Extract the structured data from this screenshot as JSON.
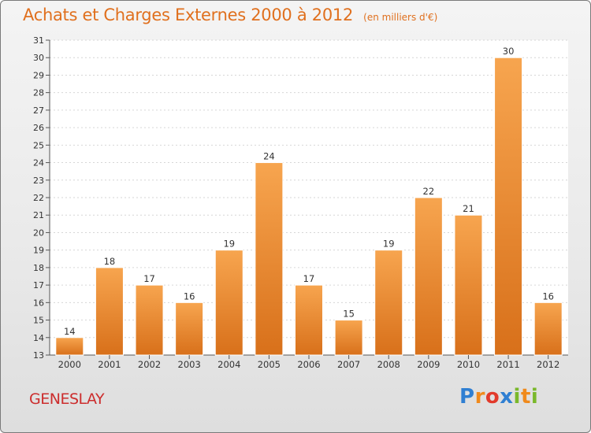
{
  "title": "Achats et Charges Externes 2000 à 2012",
  "unit": "(en milliers d'€)",
  "place": "GENESLAY",
  "logo": {
    "letters": [
      {
        "ch": "P",
        "color": "#2f7fd2"
      },
      {
        "ch": "r",
        "color": "#f08a1c"
      },
      {
        "ch": "o",
        "color": "#e23a2b"
      },
      {
        "ch": "x",
        "color": "#2f7fd2"
      },
      {
        "ch": "i",
        "color": "#7ab82b"
      },
      {
        "ch": "t",
        "color": "#f08a1c"
      },
      {
        "ch": "i",
        "color": "#7ab82b"
      }
    ]
  },
  "colors": {
    "bar_top": "#f7a54f",
    "bar_bottom": "#d8701a",
    "title": "#e0701e",
    "place": "#cc2d2d"
  },
  "chart_data": {
    "type": "bar",
    "categories": [
      "2000",
      "2001",
      "2002",
      "2003",
      "2004",
      "2005",
      "2006",
      "2007",
      "2008",
      "2009",
      "2010",
      "2011",
      "2012"
    ],
    "values": [
      14,
      18,
      17,
      16,
      19,
      24,
      17,
      15,
      19,
      22,
      21,
      30,
      16
    ],
    "ylim": [
      13,
      31
    ],
    "yticks": [
      13,
      14,
      15,
      16,
      17,
      18,
      19,
      20,
      21,
      22,
      23,
      24,
      25,
      26,
      27,
      28,
      29,
      30,
      31
    ],
    "grid": true,
    "legend": "none"
  }
}
